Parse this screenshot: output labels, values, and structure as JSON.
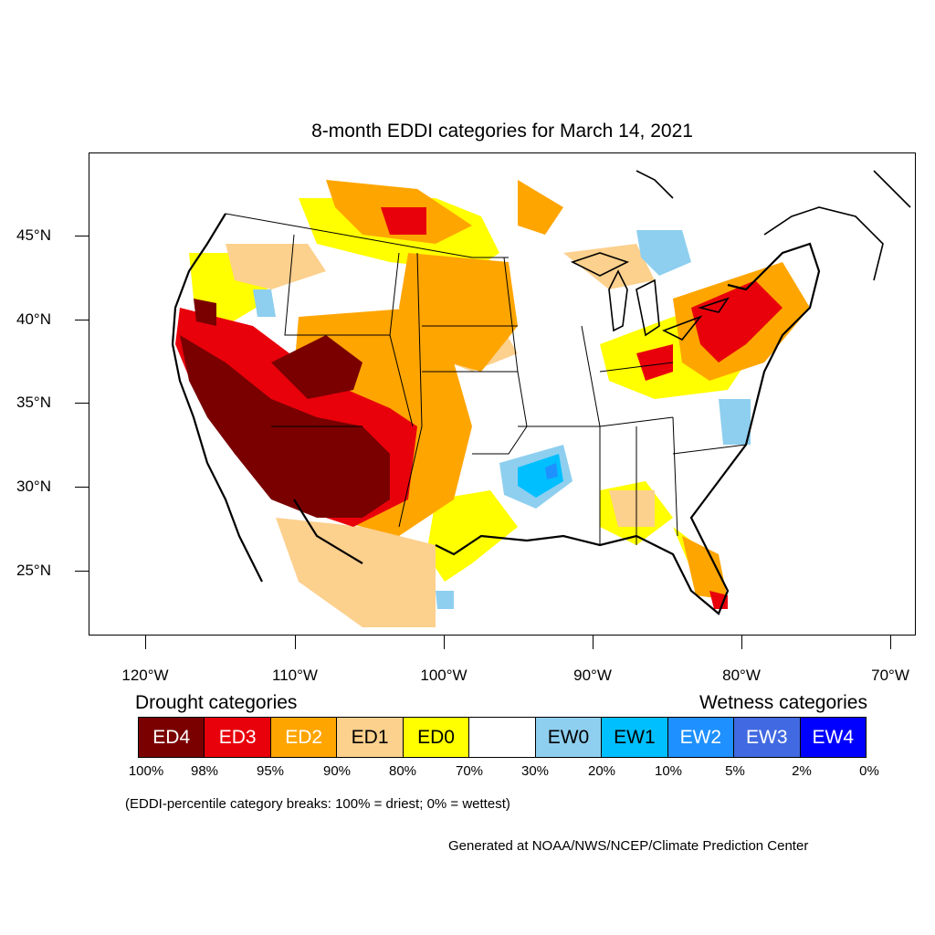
{
  "title": "8-month EDDI categories for March 14, 2021",
  "axes": {
    "y_labels": [
      "45°N",
      "40°N",
      "35°N",
      "30°N",
      "25°N"
    ],
    "x_labels": [
      "120°W",
      "110°W",
      "100°W",
      "90°W",
      "80°W",
      "70°W"
    ]
  },
  "legend": {
    "drought_heading": "Drought categories",
    "wetness_heading": "Wetness categories",
    "categories": [
      {
        "label": "ED4",
        "color": "#7a0000"
      },
      {
        "label": "ED3",
        "color": "#e8000b"
      },
      {
        "label": "ED2",
        "color": "#ffa500"
      },
      {
        "label": "ED1",
        "color": "#fcd08d"
      },
      {
        "label": "ED0",
        "color": "#ffff00"
      },
      {
        "label": "",
        "color": "#ffffff"
      },
      {
        "label": "EW0",
        "color": "#8ecfef"
      },
      {
        "label": "EW1",
        "color": "#00bfff"
      },
      {
        "label": "EW2",
        "color": "#1e90ff"
      },
      {
        "label": "EW3",
        "color": "#4169e1"
      },
      {
        "label": "EW4",
        "color": "#0000ff"
      }
    ],
    "percent_breaks": [
      "100%",
      "98%",
      "95%",
      "90%",
      "80%",
      "70%",
      "30%",
      "20%",
      "10%",
      "5%",
      "2%",
      "0%"
    ],
    "note": "(EDDI-percentile category breaks: 100% = driest; 0% = wettest)"
  },
  "credit": "Generated at NOAA/NWS/NCEP/Climate Prediction Center"
}
